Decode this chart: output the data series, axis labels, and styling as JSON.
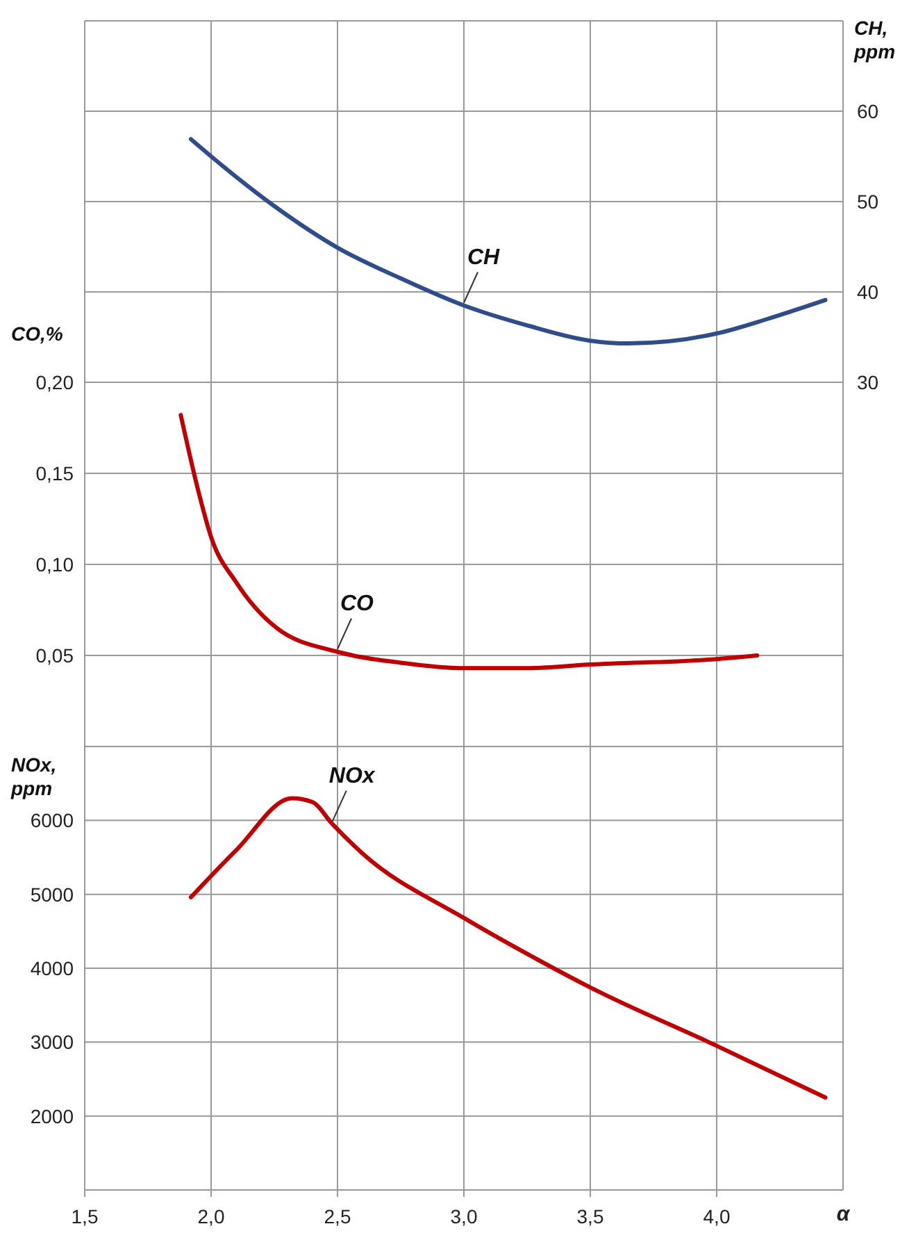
{
  "chart_data": [
    {
      "type": "line",
      "xlim": [
        1.5,
        4.5
      ],
      "xticks": [
        {
          "value": 1.5,
          "label": null
        },
        {
          "value": 2,
          "label": null
        },
        {
          "value": 2.5,
          "label": null
        },
        {
          "value": 3,
          "label": null
        },
        {
          "value": 3.5,
          "label": null
        },
        {
          "value": 4,
          "label": null
        }
      ],
      "y2lim": [
        30,
        70
      ],
      "y2ticks": [
        30,
        40,
        50,
        60
      ],
      "y2label": "CH, ppm",
      "grid": true,
      "tick_labels": "y",
      "series": [
        {
          "name": "CH",
          "color": "#2e4d8a",
          "axis": "y2",
          "x": [
            1.92,
            2.0,
            2.25,
            2.5,
            2.75,
            3.0,
            3.25,
            3.5,
            3.65,
            4.0,
            4.2,
            4.43
          ],
          "values": [
            56.9,
            55,
            49.5,
            44.9,
            41.5,
            38.5,
            36.3,
            34.6,
            34.3,
            35.4,
            37,
            39.1
          ]
        }
      ]
    },
    {
      "type": "line",
      "xlim": [
        1.5,
        4.5
      ],
      "xticks": [
        {
          "value": 1.5,
          "label": null
        },
        {
          "value": 2,
          "label": null
        },
        {
          "value": 2.5,
          "label": null
        },
        {
          "value": 3,
          "label": null
        },
        {
          "value": 3.5,
          "label": null
        },
        {
          "value": 4,
          "label": null
        }
      ],
      "ylim": [
        0,
        0.2
      ],
      "yticks": [
        {
          "value": 0.05,
          "label": "0,05"
        },
        {
          "value": 0.1,
          "label": "0,10"
        },
        {
          "value": 0.15,
          "label": "0,15"
        },
        {
          "value": 0.2,
          "label": "0,20"
        }
      ],
      "ylabel": "CO,%",
      "grid": true,
      "tick_labels": "y",
      "series": [
        {
          "name": "CO",
          "color": "#c00000",
          "x": [
            1.88,
            1.95,
            2.0,
            2.1,
            2.26,
            2.5,
            2.75,
            3.0,
            3.25,
            3.5,
            4.0,
            4.16
          ],
          "values": [
            0.182,
            0.14,
            0.115,
            0.09,
            0.065,
            0.052,
            0.046,
            0.043,
            0.043,
            0.045,
            0.048,
            0.05
          ]
        }
      ]
    },
    {
      "type": "line",
      "xlim": [
        1.5,
        4.5
      ],
      "xticks": [
        {
          "value": 1.5,
          "label": "1,5"
        },
        {
          "value": 2,
          "label": "2,0"
        },
        {
          "value": 2.5,
          "label": "2,5"
        },
        {
          "value": 3,
          "label": "3,0"
        },
        {
          "value": 3.5,
          "label": "3,5"
        },
        {
          "value": 4,
          "label": "4,0"
        }
      ],
      "xlabel": "α",
      "ylim": [
        1000,
        7000
      ],
      "yticks": [
        2000,
        3000,
        4000,
        5000,
        6000
      ],
      "ylabel": "NOx, ppm",
      "grid": true,
      "series": [
        {
          "name": "NOx",
          "color": "#c00000",
          "x": [
            1.92,
            2.1,
            2.32,
            2.4,
            2.48,
            2.6,
            3.0,
            3.29,
            3.5,
            4.0,
            4.43
          ],
          "values": [
            4960,
            5600,
            6300,
            6250,
            5950,
            5550,
            4680,
            4120,
            3740,
            2950,
            2250
          ]
        }
      ]
    }
  ]
}
